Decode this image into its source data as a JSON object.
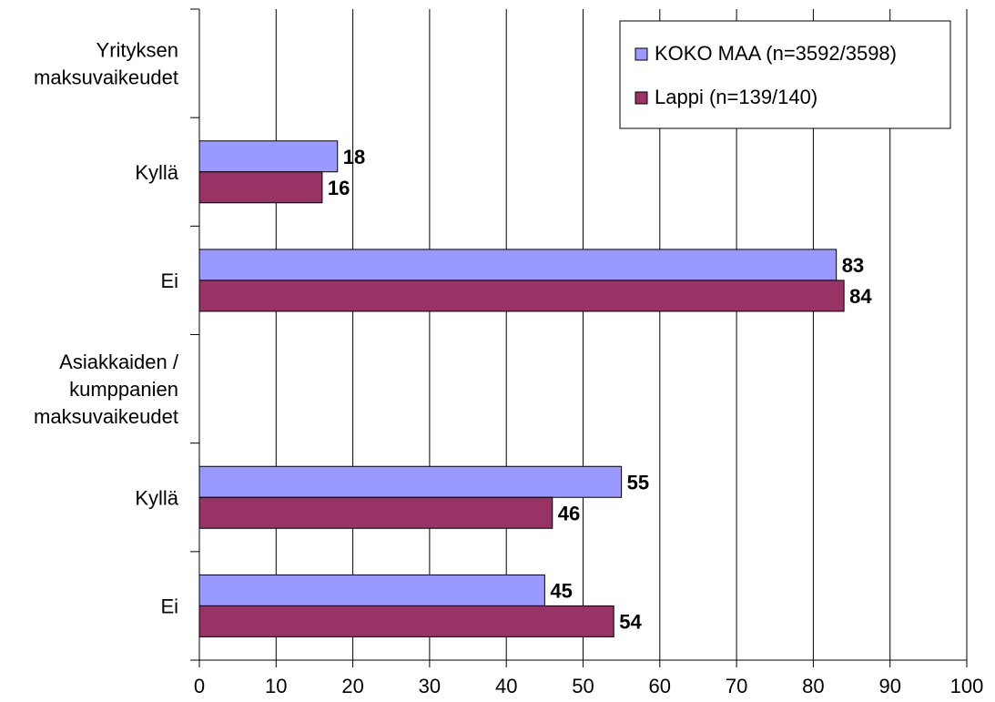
{
  "chart_data": {
    "type": "bar",
    "orientation": "horizontal",
    "categories": [
      {
        "lines": [
          "Yrityksen",
          "maksuvaikeudet"
        ],
        "kind": "group-header"
      },
      {
        "lines": [
          "Kyllä"
        ],
        "kind": "category"
      },
      {
        "lines": [
          "Ei"
        ],
        "kind": "category"
      },
      {
        "lines": [
          "Asiakkaiden /",
          "kumppanien",
          "maksuvaikeudet"
        ],
        "kind": "group-header"
      },
      {
        "lines": [
          "Kyllä"
        ],
        "kind": "category"
      },
      {
        "lines": [
          "Ei"
        ],
        "kind": "category"
      }
    ],
    "series": [
      {
        "name": "KOKO MAA (n=3592/3598)",
        "color": "#9999ff",
        "values": [
          null,
          18,
          83,
          null,
          55,
          45
        ]
      },
      {
        "name": "Lappi (n=139/140)",
        "color": "#993366",
        "values": [
          null,
          16,
          84,
          null,
          46,
          54
        ]
      }
    ],
    "xlim": [
      0,
      100
    ],
    "xticks": [
      0,
      10,
      20,
      30,
      40,
      50,
      60,
      70,
      80,
      90,
      100
    ],
    "grid": true,
    "legend_position": "top-right",
    "data_labels": true
  }
}
